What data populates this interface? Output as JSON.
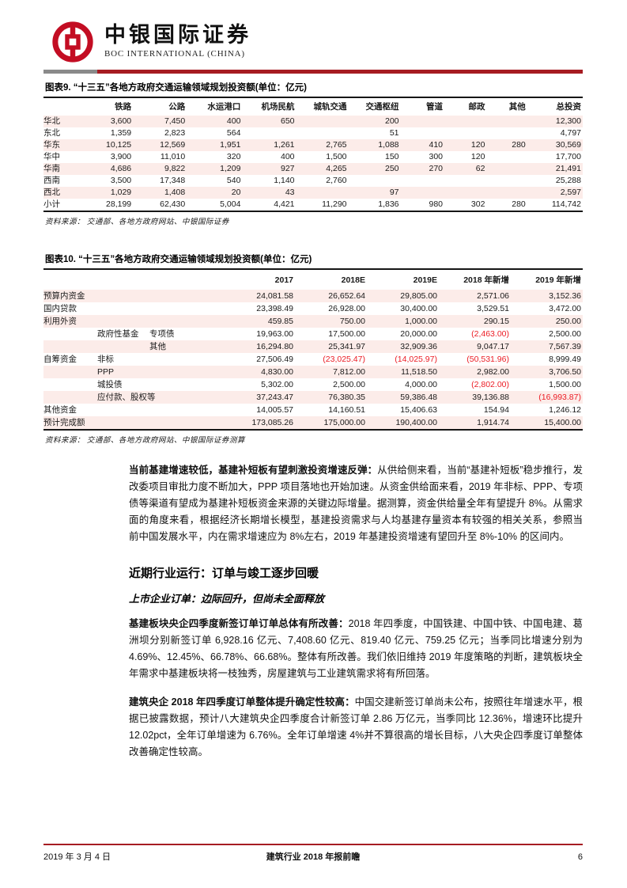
{
  "header": {
    "brand_cn": "中银国际证券",
    "brand_en": "BOC INTERNATIONAL (CHINA)"
  },
  "colors": {
    "accent_red": "#A61C22",
    "logo_red": "#C30D23",
    "bar_gray": "#8A8A8A",
    "row_pink": "#FCECE9",
    "negative_red": "#EC1C24"
  },
  "table9": {
    "title": "图表9. “十三五”各地方政府交通运输领域规划投资额(单位：亿元)",
    "label_cols": 1,
    "columns": [
      "",
      "铁路",
      "公路",
      "水运港口",
      "机场民航",
      "城轨交通",
      "交通枢纽",
      "管道",
      "邮政",
      "其他",
      "总投资"
    ],
    "rows": [
      [
        "华北",
        "3,600",
        "7,450",
        "400",
        "650",
        "",
        "200",
        "",
        "",
        "",
        "12,300"
      ],
      [
        "东北",
        "1,359",
        "2,823",
        "564",
        "",
        "",
        "51",
        "",
        "",
        "",
        "4,797"
      ],
      [
        "华东",
        "10,125",
        "12,569",
        "1,951",
        "1,261",
        "2,765",
        "1,088",
        "410",
        "120",
        "280",
        "30,569"
      ],
      [
        "华中",
        "3,900",
        "11,010",
        "320",
        "400",
        "1,500",
        "150",
        "300",
        "120",
        "",
        "17,700"
      ],
      [
        "华南",
        "4,686",
        "9,822",
        "1,209",
        "927",
        "4,265",
        "250",
        "270",
        "62",
        "",
        "21,491"
      ],
      [
        "西南",
        "3,500",
        "17,348",
        "540",
        "1,140",
        "2,760",
        "",
        "",
        "",
        "",
        "25,288"
      ],
      [
        "西北",
        "1,029",
        "1,408",
        "20",
        "43",
        "",
        "97",
        "",
        "",
        "",
        "2,597"
      ],
      [
        "小计",
        "28,199",
        "62,430",
        "5,004",
        "4,421",
        "11,290",
        "1,836",
        "980",
        "302",
        "280",
        "114,742"
      ]
    ],
    "source": "资料来源： 交通部、各地方政府网站、中银国际证券"
  },
  "table10": {
    "title": "图表10. “十三五”各地方政府交通运输领域规划投资额(单位：亿元)",
    "label_cols": 3,
    "columns": [
      "",
      "",
      "",
      "2017",
      "2018E",
      "2019E",
      "2018 年新增",
      "2019 年新增"
    ],
    "rows": [
      [
        "预算内资金",
        "",
        "",
        "24,081.58",
        "26,652.64",
        "29,805.00",
        "2,571.06",
        "3,152.36"
      ],
      [
        "国内贷款",
        "",
        "",
        "23,398.49",
        "26,928.00",
        "30,400.00",
        "3,529.51",
        "3,472.00"
      ],
      [
        "利用外资",
        "",
        "",
        "459.85",
        "750.00",
        "1,000.00",
        "290.15",
        "250.00"
      ],
      [
        "",
        "政府性基金",
        "专项债",
        "19,963.00",
        "17,500.00",
        "20,000.00",
        "(2,463.00)",
        "2,500.00"
      ],
      [
        "",
        "",
        "其他",
        "16,294.80",
        "25,341.97",
        "32,909.36",
        "9,047.17",
        "7,567.39"
      ],
      [
        "自筹资金",
        "非标",
        "",
        "27,506.49",
        "(23,025.47)",
        "(14,025.97)",
        "(50,531.96)",
        "8,999.49"
      ],
      [
        "",
        "PPP",
        "",
        "4,830.00",
        "7,812.00",
        "11,518.50",
        "2,982.00",
        "3,706.50"
      ],
      [
        "",
        "城投债",
        "",
        "5,302.00",
        "2,500.00",
        "4,000.00",
        "(2,802.00)",
        "1,500.00"
      ],
      [
        "",
        "应付款、股权等",
        "",
        "37,243.47",
        "76,380.35",
        "59,386.48",
        "39,136.88",
        "(16,993.87)"
      ],
      [
        "其他资金",
        "",
        "",
        "14,005.57",
        "14,160.51",
        "15,406.63",
        "154.94",
        "1,246.12"
      ],
      [
        "预计完成额",
        "",
        "",
        "173,085.26",
        "175,000.00",
        "190,400.00",
        "1,914.74",
        "15,400.00"
      ]
    ],
    "source": "资料来源： 交通部、各地方政府网站、中银国际证券测算"
  },
  "body": {
    "p1_lead": "当前基建增速较低，基建补短板有望刺激投资增速反弹：",
    "p1_text": "从供给侧来看，当前“基建补短板”稳步推行，发改委项目审批力度不断加大，PPP 项目落地也开始加速。从资金供给面来看，2019 年非标、PPP、专项债等渠道有望成为基建补短板资金来源的关键边际增量。据测算，资金供给量全年有望提升 8%。从需求面的角度来看，根据经济长期增长模型，基建投资需求与人均基建存量资本有较强的相关关系，参照当前中国发展水平，内在需求增速应为 8%左右，2019 年基建投资增速有望回升至 8%-10% 的区间内。",
    "section_heading": "近期行业运行：订单与竣工逐步回暖",
    "sub_heading": "上市企业订单：边际回升，但尚未全面释放",
    "p2_lead": "基建板块央企四季度新签订单订单总体有所改善：",
    "p2_text": "2018 年四季度，中国铁建、中国中铁、中国电建、葛洲坝分别新签订单 6,928.16 亿元、7,408.60 亿元、819.40 亿元、759.25 亿元；当季同比增速分别为 4.69%、12.45%、66.78%、66.68%。整体有所改善。我们依旧维持 2019 年度策略的判断，建筑板块全年需求中基建板块将一枝独秀，房屋建筑与工业建筑需求将有所回落。",
    "p3_lead": "建筑央企 2018 年四季度订单整体提升确定性较高：",
    "p3_text": "中国交建新签订单尚未公布，按照往年增速水平，根据已披露数据，预计八大建筑央企四季度合计新签订单 2.86 万亿元，当季同比 12.36%，增速环比提升 12.02pct，全年订单增速为 6.76%。全年订单增速 4%并不算很高的增长目标，八大央企四季度订单整体改善确定性较高。"
  },
  "footer": {
    "date": "2019 年 3 月 4 日",
    "report_title": "建筑行业 2018 年报前瞻",
    "page_number": "6"
  }
}
